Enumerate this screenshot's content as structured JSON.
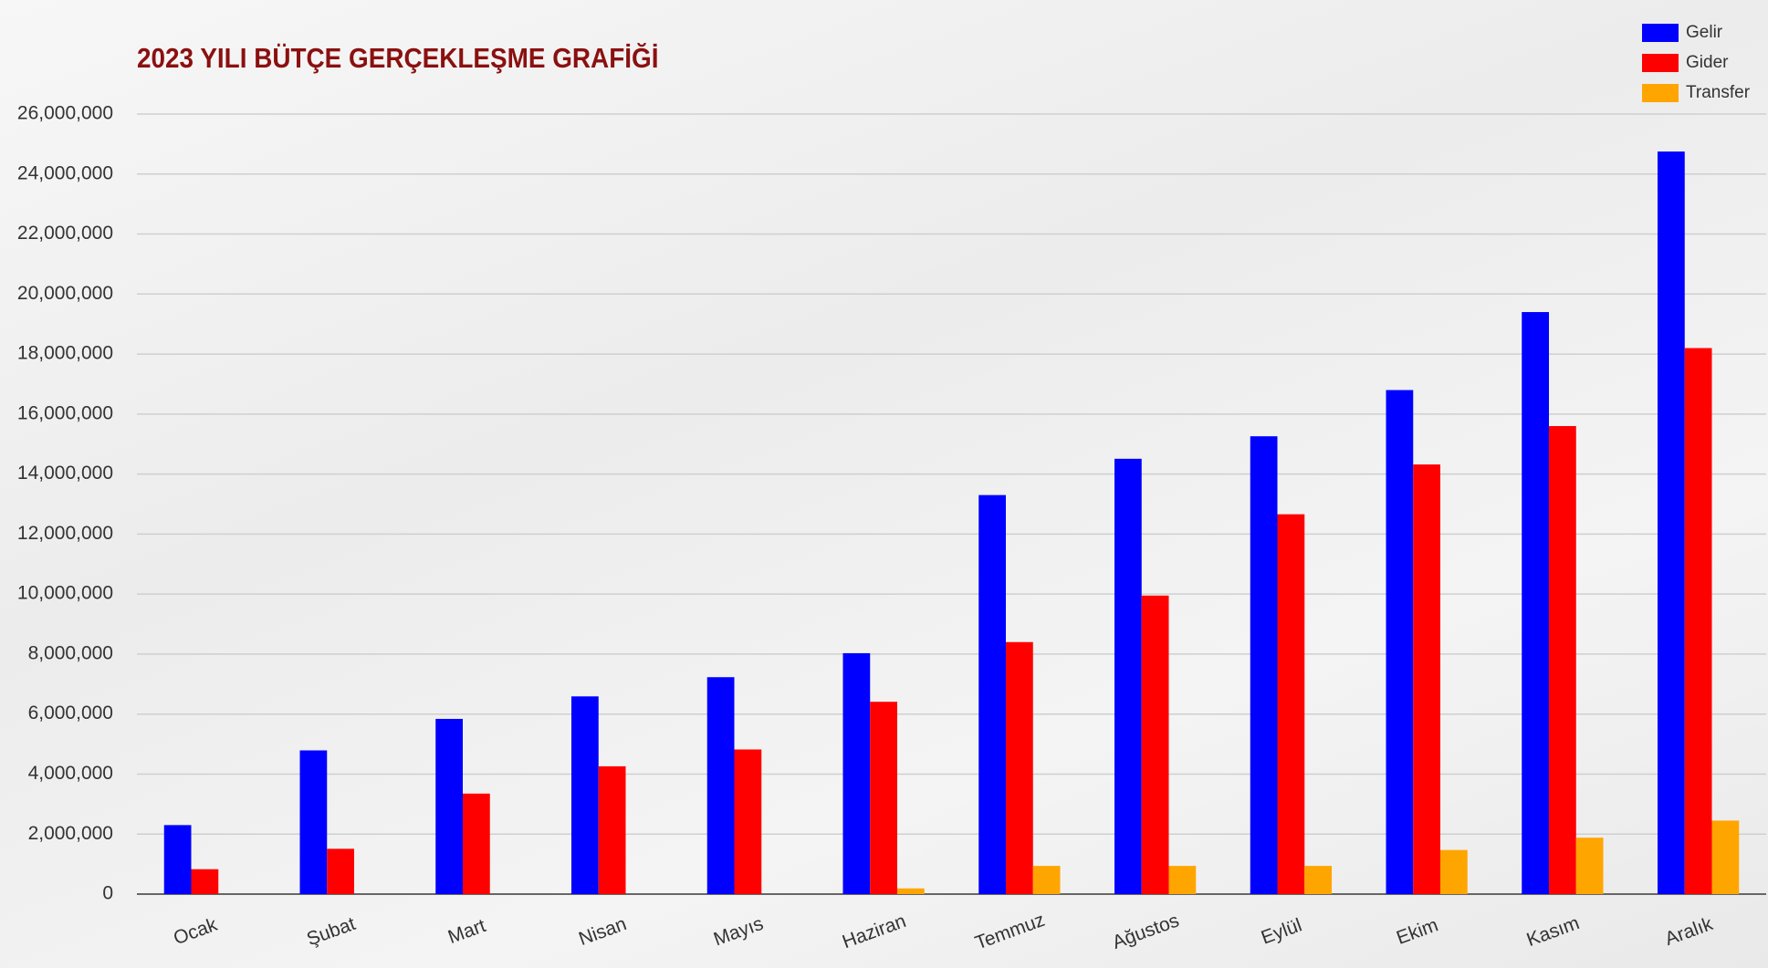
{
  "chart_data": {
    "type": "bar",
    "title": "2023 YILI BÜTÇE GERÇEKLEŞME GRAFİĞİ",
    "categories": [
      "Ocak",
      "Şubat",
      "Mart",
      "Nisan",
      "Mayıs",
      "Haziran",
      "Temmuz",
      "Ağustos",
      "Eylül",
      "Ekim",
      "Kasım",
      "Aralık"
    ],
    "series": [
      {
        "name": "Gelir",
        "color": "#0000ff",
        "values": [
          2300000,
          4790000,
          5840000,
          6590000,
          7230000,
          8030000,
          13300000,
          14510000,
          15260000,
          16800000,
          19400000,
          24750000
        ]
      },
      {
        "name": "Gider",
        "color": "#ff0000",
        "values": [
          830000,
          1510000,
          3350000,
          4260000,
          4820000,
          6410000,
          8400000,
          9950000,
          12660000,
          14320000,
          15600000,
          18200000
        ]
      },
      {
        "name": "Transfer",
        "color": "#ffa500",
        "values": [
          0,
          0,
          0,
          0,
          0,
          190000,
          940000,
          940000,
          940000,
          1470000,
          1880000,
          2450000
        ]
      }
    ],
    "ylim": [
      0,
      26000000
    ],
    "yticks": [
      0,
      {
        "value": 2000000,
        "label": "2,000,000"
      },
      {
        "value": 4000000,
        "label": "4,000,000"
      },
      {
        "value": 6000000,
        "label": "6,000,000"
      },
      {
        "value": 8000000,
        "label": "8,000,000"
      },
      {
        "value": 10000000,
        "label": "10,000,000"
      },
      {
        "value": 12000000,
        "label": "12,000,000"
      },
      {
        "value": 14000000,
        "label": "14,000,000"
      },
      {
        "value": 16000000,
        "label": "16,000,000"
      },
      {
        "value": 18000000,
        "label": "18,000,000"
      },
      {
        "value": 20000000,
        "label": "20,000,000"
      },
      {
        "value": 22000000,
        "label": "22,000,000"
      },
      {
        "value": 24000000,
        "label": "24,000,000"
      },
      {
        "value": 26000000,
        "label": "26,000,000"
      }
    ],
    "grid": true,
    "legend": "top-right"
  }
}
